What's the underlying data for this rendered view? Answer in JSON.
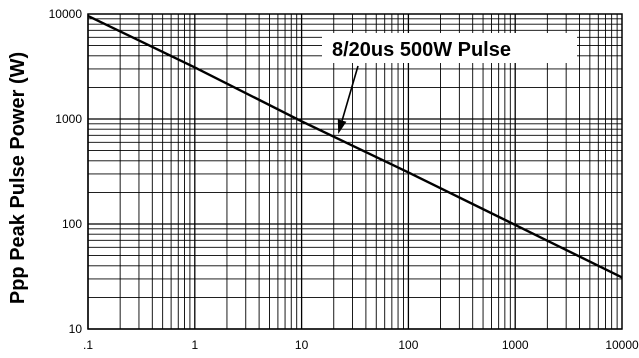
{
  "chart_data": {
    "type": "line",
    "ylabel": "Ppp  Peak Pulse Power (W)",
    "xlabel": "",
    "x_scale": "log",
    "y_scale": "log",
    "xlim": [
      0.1,
      10000
    ],
    "ylim": [
      10,
      10000
    ],
    "grid": true,
    "x_ticks": [
      {
        "value": 0.1,
        "label": ".1"
      },
      {
        "value": 1,
        "label": "1"
      },
      {
        "value": 10,
        "label": "10"
      },
      {
        "value": 100,
        "label": "100"
      },
      {
        "value": 1000,
        "label": "1000"
      },
      {
        "value": 10000,
        "label": "10000"
      }
    ],
    "y_ticks": [
      {
        "value": 10,
        "label": "10"
      },
      {
        "value": 100,
        "label": "100"
      },
      {
        "value": 1000,
        "label": "1000"
      },
      {
        "value": 10000,
        "label": "10000"
      }
    ],
    "series": [
      {
        "x": [
          0.1,
          1,
          10,
          100,
          1000,
          10000
        ],
        "y": [
          9600,
          3100,
          950,
          310,
          98,
          31
        ]
      }
    ],
    "annotations": [
      {
        "text": "8/20us 500W Pulse",
        "arrow_to": {
          "x": 22,
          "y": 720
        }
      }
    ]
  }
}
